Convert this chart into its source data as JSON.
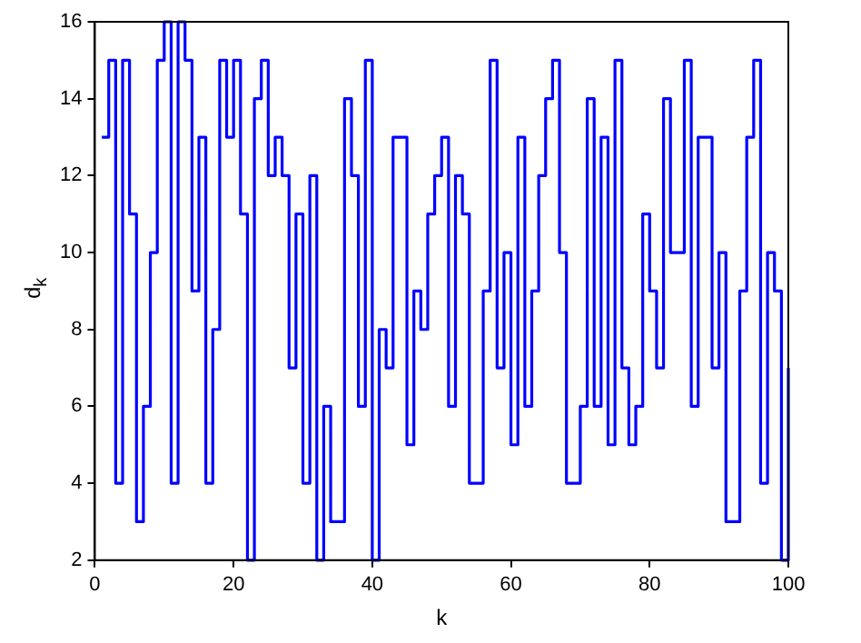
{
  "chart_data": {
    "type": "step",
    "xlabel": "k",
    "ylabel": "d$_{k}$",
    "x": [
      1,
      2,
      3,
      4,
      5,
      6,
      7,
      8,
      9,
      10,
      11,
      12,
      13,
      14,
      15,
      16,
      17,
      18,
      19,
      20,
      21,
      22,
      23,
      24,
      25,
      26,
      27,
      28,
      29,
      30,
      31,
      32,
      33,
      34,
      35,
      36,
      37,
      38,
      39,
      40,
      41,
      42,
      43,
      44,
      45,
      46,
      47,
      48,
      49,
      50,
      51,
      52,
      53,
      54,
      55,
      56,
      57,
      58,
      59,
      60,
      61,
      62,
      63,
      64,
      65,
      66,
      67,
      68,
      69,
      70,
      71,
      72,
      73,
      74,
      75,
      76,
      77,
      78,
      79,
      80,
      81,
      82,
      83,
      84,
      85,
      86,
      87,
      88,
      89,
      90,
      91,
      92,
      93,
      94,
      95,
      96,
      97,
      98,
      99,
      100
    ],
    "series": [
      {
        "color": "#0000ff",
        "values": [
          13,
          15,
          4,
          15,
          11,
          3,
          6,
          10,
          15,
          16,
          4,
          16,
          15,
          9,
          13,
          4,
          8,
          15,
          13,
          15,
          11,
          2,
          14,
          15,
          12,
          13,
          12,
          7,
          11,
          4,
          12,
          2,
          6,
          3,
          3,
          14,
          12,
          6,
          15,
          2,
          8,
          7,
          13,
          13,
          5,
          9,
          8,
          11,
          12,
          13,
          6,
          12,
          11,
          4,
          4,
          9,
          15,
          7,
          10,
          5,
          13,
          6,
          9,
          12,
          14,
          15,
          10,
          4,
          4,
          6,
          14,
          6,
          13,
          5,
          15,
          7,
          5,
          6,
          11,
          9,
          7,
          14,
          10,
          10,
          15,
          6,
          13,
          13,
          7,
          10,
          3,
          3,
          9,
          13,
          15,
          4,
          10,
          9,
          2,
          7
        ]
      }
    ],
    "xlim": [
      0,
      100
    ],
    "xticks": [
      0,
      20,
      40,
      60,
      80,
      100
    ],
    "ylim": [
      2,
      16
    ],
    "yticks": [
      2,
      4,
      6,
      8,
      10,
      12,
      14,
      16
    ],
    "grid": false,
    "legend": false,
    "line_style": "solid",
    "marker": "none"
  }
}
